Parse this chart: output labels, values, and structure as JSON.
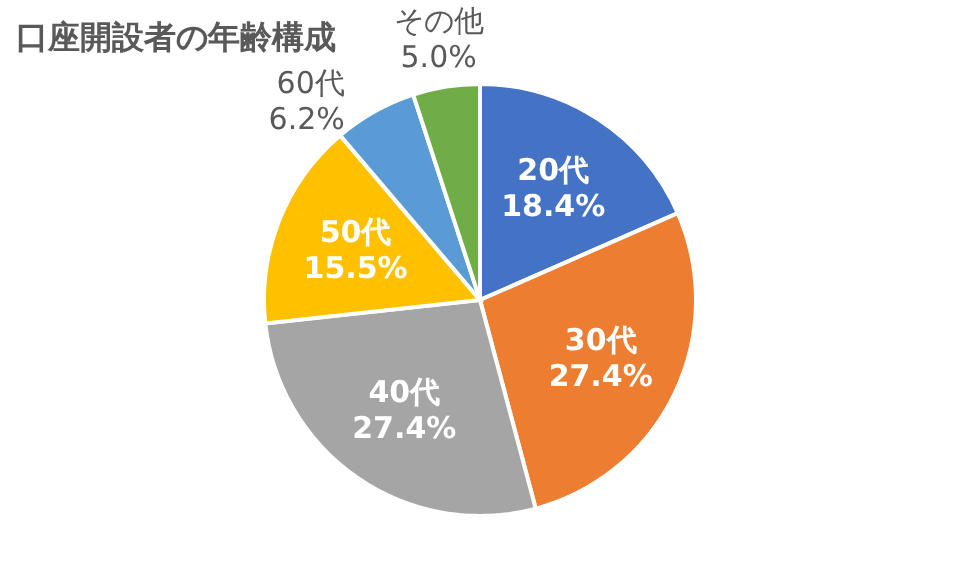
{
  "chart_data": {
    "type": "pie",
    "title": "口座開設者の年齢構成",
    "categories": [
      "20代",
      "30代",
      "40代",
      "50代",
      "60代",
      "その他"
    ],
    "values": [
      18.4,
      27.4,
      27.4,
      15.5,
      6.2,
      5.0
    ],
    "value_labels": [
      "18.4%",
      "27.4%",
      "27.4%",
      "15.5%",
      "6.2%",
      "5.0%"
    ],
    "colors": [
      "#4472c4",
      "#ed7d31",
      "#a5a5a5",
      "#ffc000",
      "#5b9bd5",
      "#70ad47"
    ],
    "legend": false
  }
}
